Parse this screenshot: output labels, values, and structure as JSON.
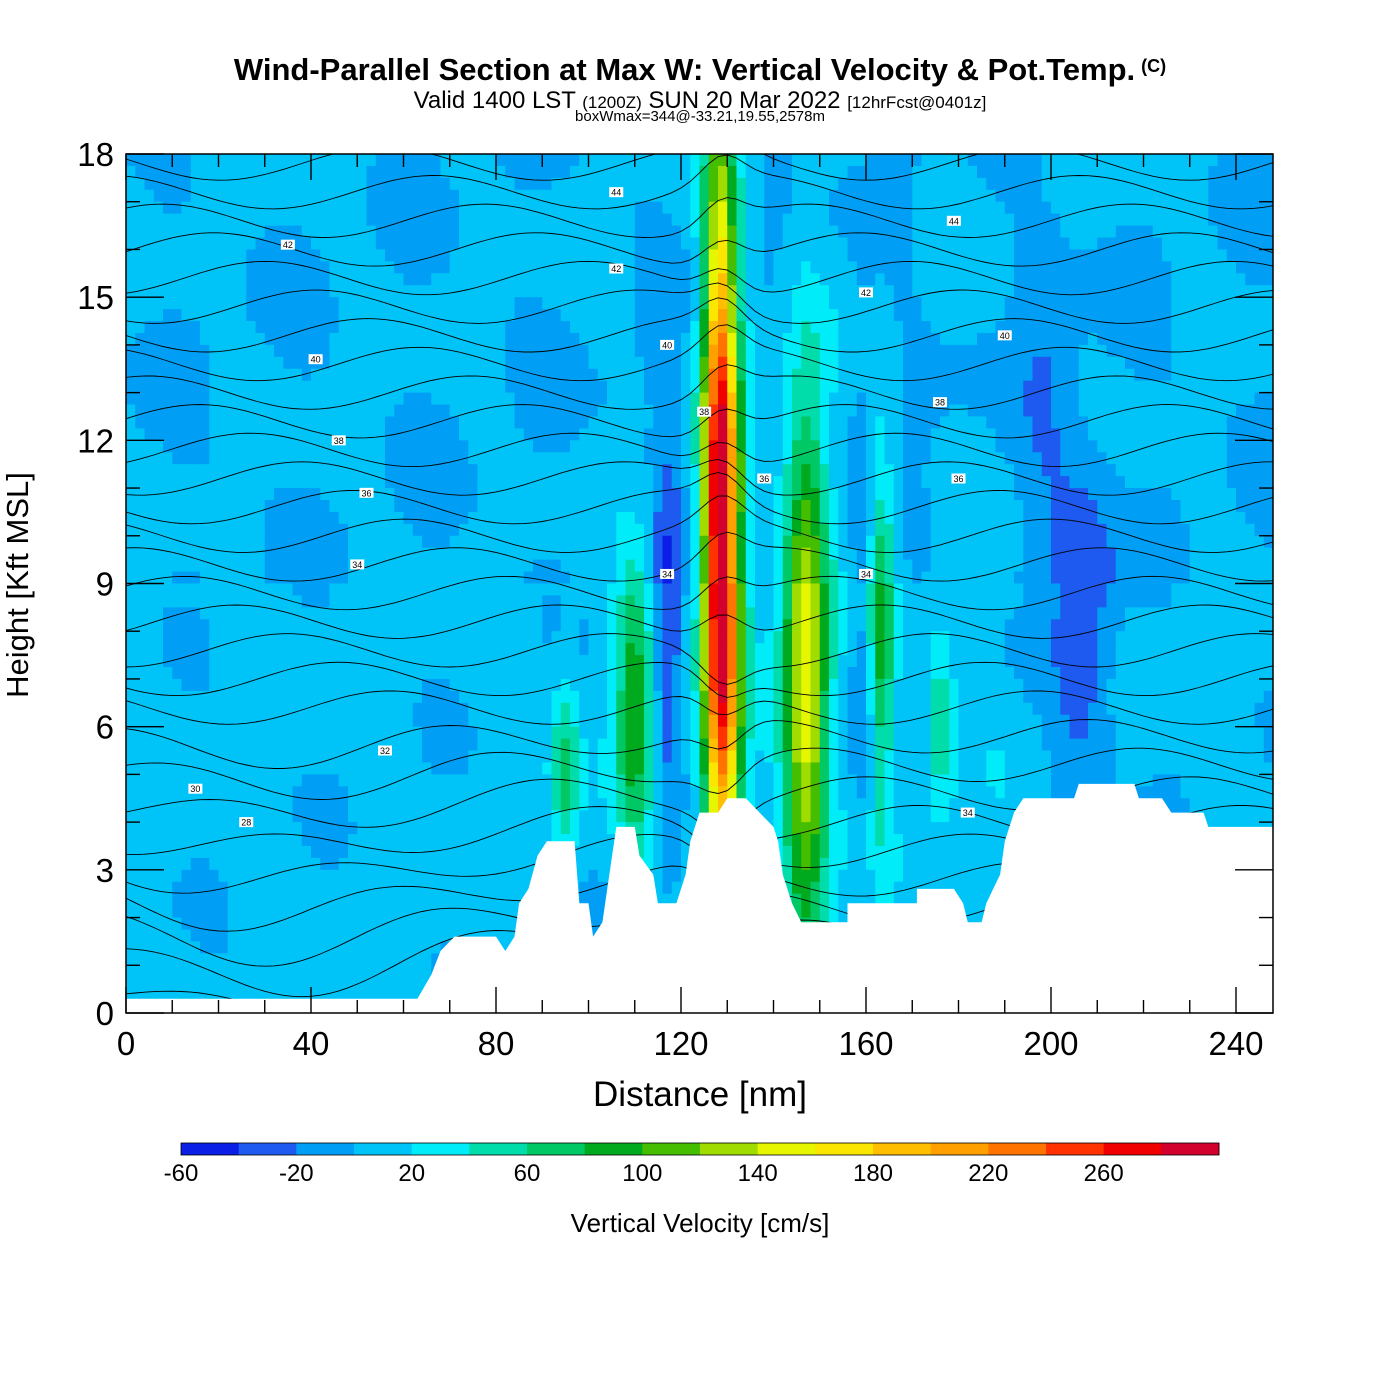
{
  "header": {
    "title_main": "Wind-Parallel Section at Max W: Vertical Velocity & Pot.Temp.",
    "title_copyright": "(C)",
    "subtitle_valid": "Valid 1400 LST",
    "subtitle_utc": "(1200Z)",
    "subtitle_date": "SUN 20 Mar 2022",
    "subtitle_fcst": "[12hrFcst@0401z]",
    "box_info": "boxWmax=344@-33.21,19.55,2578m"
  },
  "chart_data": {
    "type": "heatmap",
    "xlabel": "Distance [nm]",
    "ylabel": "Height [Kft MSL]",
    "xlim": [
      0,
      248
    ],
    "ylim": [
      0,
      18
    ],
    "xticks": [
      0,
      40,
      80,
      120,
      160,
      200,
      240
    ],
    "yticks": [
      0,
      3,
      6,
      9,
      12,
      15,
      18
    ],
    "colorbar": {
      "label": "Vertical Velocity [cm/s]",
      "ticks": [
        -60,
        -20,
        20,
        60,
        100,
        140,
        180,
        220,
        260
      ],
      "levels": [
        -60,
        -40,
        -20,
        0,
        20,
        40,
        60,
        80,
        100,
        120,
        140,
        160,
        180,
        200,
        220,
        240,
        260,
        280
      ],
      "colors": [
        "#0a1ee6",
        "#1e5af0",
        "#009ff5",
        "#00c4f8",
        "#00ecf8",
        "#00dcaa",
        "#00c864",
        "#00aa1e",
        "#46be00",
        "#a0dc00",
        "#e6f500",
        "#fae600",
        "#ffbe00",
        "#ffa000",
        "#ff7300",
        "#ff3200",
        "#f00000",
        "#d2002d"
      ]
    },
    "terrain_profile": [
      [
        0,
        0.3
      ],
      [
        63,
        0.3
      ],
      [
        66,
        0.8
      ],
      [
        68,
        1.3
      ],
      [
        71,
        1.6
      ],
      [
        80,
        1.6
      ],
      [
        82,
        1.3
      ],
      [
        84,
        1.6
      ],
      [
        85,
        2.3
      ],
      [
        87,
        2.6
      ],
      [
        89,
        3.3
      ],
      [
        91,
        3.6
      ],
      [
        97,
        3.6
      ],
      [
        98,
        2.3
      ],
      [
        100,
        2.3
      ],
      [
        101,
        1.6
      ],
      [
        103,
        1.9
      ],
      [
        106,
        3.9
      ],
      [
        110,
        3.9
      ],
      [
        111,
        3.3
      ],
      [
        114,
        2.9
      ],
      [
        115,
        2.3
      ],
      [
        119,
        2.3
      ],
      [
        121,
        2.9
      ],
      [
        122,
        3.6
      ],
      [
        124,
        4.2
      ],
      [
        128,
        4.2
      ],
      [
        130,
        4.5
      ],
      [
        134,
        4.5
      ],
      [
        137,
        4.2
      ],
      [
        140,
        3.9
      ],
      [
        141,
        3.6
      ],
      [
        142,
        2.9
      ],
      [
        144,
        2.3
      ],
      [
        146,
        1.9
      ],
      [
        156,
        1.9
      ],
      [
        156,
        2.3
      ],
      [
        171,
        2.3
      ],
      [
        171,
        2.6
      ],
      [
        179,
        2.6
      ],
      [
        181,
        2.3
      ],
      [
        182,
        1.9
      ],
      [
        185,
        1.9
      ],
      [
        186,
        2.3
      ],
      [
        189,
        2.9
      ],
      [
        190,
        3.6
      ],
      [
        192,
        4.2
      ],
      [
        194,
        4.5
      ],
      [
        205,
        4.5
      ],
      [
        206,
        4.8
      ],
      [
        218,
        4.8
      ],
      [
        219,
        4.5
      ],
      [
        224,
        4.5
      ],
      [
        226,
        4.2
      ],
      [
        233,
        4.2
      ],
      [
        234,
        3.9
      ],
      [
        248,
        3.9
      ]
    ],
    "vertical_velocity_features": [
      {
        "x": 129,
        "z_center": 10,
        "half_width": 4,
        "half_height": 7.5,
        "w_max": 344
      },
      {
        "x": 131,
        "z_center": 12,
        "half_width": 2.5,
        "half_height": 6,
        "w_max": -60
      },
      {
        "x": 147,
        "z_center": 7,
        "half_width": 5,
        "half_height": 6,
        "w_max": 150
      },
      {
        "x": 163,
        "z_center": 8,
        "half_width": 3,
        "half_height": 4,
        "w_max": 90
      },
      {
        "x": 110,
        "z_center": 6.5,
        "half_width": 4,
        "half_height": 3,
        "w_max": 90
      },
      {
        "x": 95,
        "z_center": 5,
        "half_width": 3,
        "half_height": 2,
        "w_max": 60
      },
      {
        "x": 176,
        "z_center": 6,
        "half_width": 3,
        "half_height": 2,
        "w_max": 50
      },
      {
        "x": 117,
        "z_center": 8,
        "half_width": 3,
        "half_height": 4,
        "w_max": -45
      },
      {
        "x": 160,
        "z_center": 8,
        "half_width": 3,
        "half_height": 5,
        "w_max": -40
      },
      {
        "x": 207,
        "z_center": 8,
        "half_width": 7,
        "half_height": 3.5,
        "w_max": -45
      },
      {
        "x": 199,
        "z_center": 13,
        "half_width": 6,
        "half_height": 3,
        "w_max": -20
      }
    ],
    "isentrope_labels": [
      {
        "text": "44",
        "x": 106,
        "z": 17.2
      },
      {
        "text": "44",
        "x": 179,
        "z": 16.6
      },
      {
        "text": "42",
        "x": 35,
        "z": 16.1
      },
      {
        "text": "42",
        "x": 106,
        "z": 15.6
      },
      {
        "text": "42",
        "x": 160,
        "z": 15.1
      },
      {
        "text": "40",
        "x": 41,
        "z": 13.7
      },
      {
        "text": "40",
        "x": 117,
        "z": 14.0
      },
      {
        "text": "40",
        "x": 190,
        "z": 14.2
      },
      {
        "text": "38",
        "x": 46,
        "z": 12.0
      },
      {
        "text": "38",
        "x": 125,
        "z": 12.6
      },
      {
        "text": "38",
        "x": 176,
        "z": 12.8
      },
      {
        "text": "36",
        "x": 52,
        "z": 10.9
      },
      {
        "text": "36",
        "x": 138,
        "z": 11.2
      },
      {
        "text": "36",
        "x": 180,
        "z": 11.2
      },
      {
        "text": "34",
        "x": 50,
        "z": 9.4
      },
      {
        "text": "34",
        "x": 117,
        "z": 9.2
      },
      {
        "text": "34",
        "x": 160,
        "z": 9.2
      },
      {
        "text": "34",
        "x": 182,
        "z": 4.2
      },
      {
        "text": "32",
        "x": 56,
        "z": 5.5
      },
      {
        "text": "30",
        "x": 15,
        "z": 4.7
      },
      {
        "text": "28",
        "x": 26,
        "z": 4.0
      }
    ]
  }
}
